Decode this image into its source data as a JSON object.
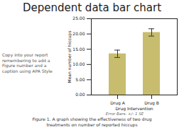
{
  "chart_data": {
    "type": "bar",
    "title": "Dependent data bar chart",
    "categories": [
      "Drug A",
      "Drug B"
    ],
    "values": [
      13.5,
      20.5
    ],
    "errors": [
      1.2,
      1.2
    ],
    "color": "#c8bc6e",
    "xlabel": "Drug Intervention",
    "ylabel": "Mean number of hiccups",
    "ylim": [
      0,
      25
    ],
    "yticks": [
      {
        "value": 0,
        "label": "0.00"
      },
      {
        "value": 5,
        "label": "5.00"
      },
      {
        "value": 10,
        "label": "10.00"
      },
      {
        "value": 15,
        "label": "15.00"
      },
      {
        "value": 20,
        "label": "20.00"
      },
      {
        "value": 25,
        "label": "25.00"
      }
    ],
    "grid": false,
    "annotations": [
      "Copy into your report\nremembering to add a\nFigure number and a\ncaption using APA Style",
      "Error Bars: +/- 1 SE"
    ],
    "caption": "Figure 1. A graph showing the effectiveness of two drug\ntreatments on number of reported hiccups"
  }
}
